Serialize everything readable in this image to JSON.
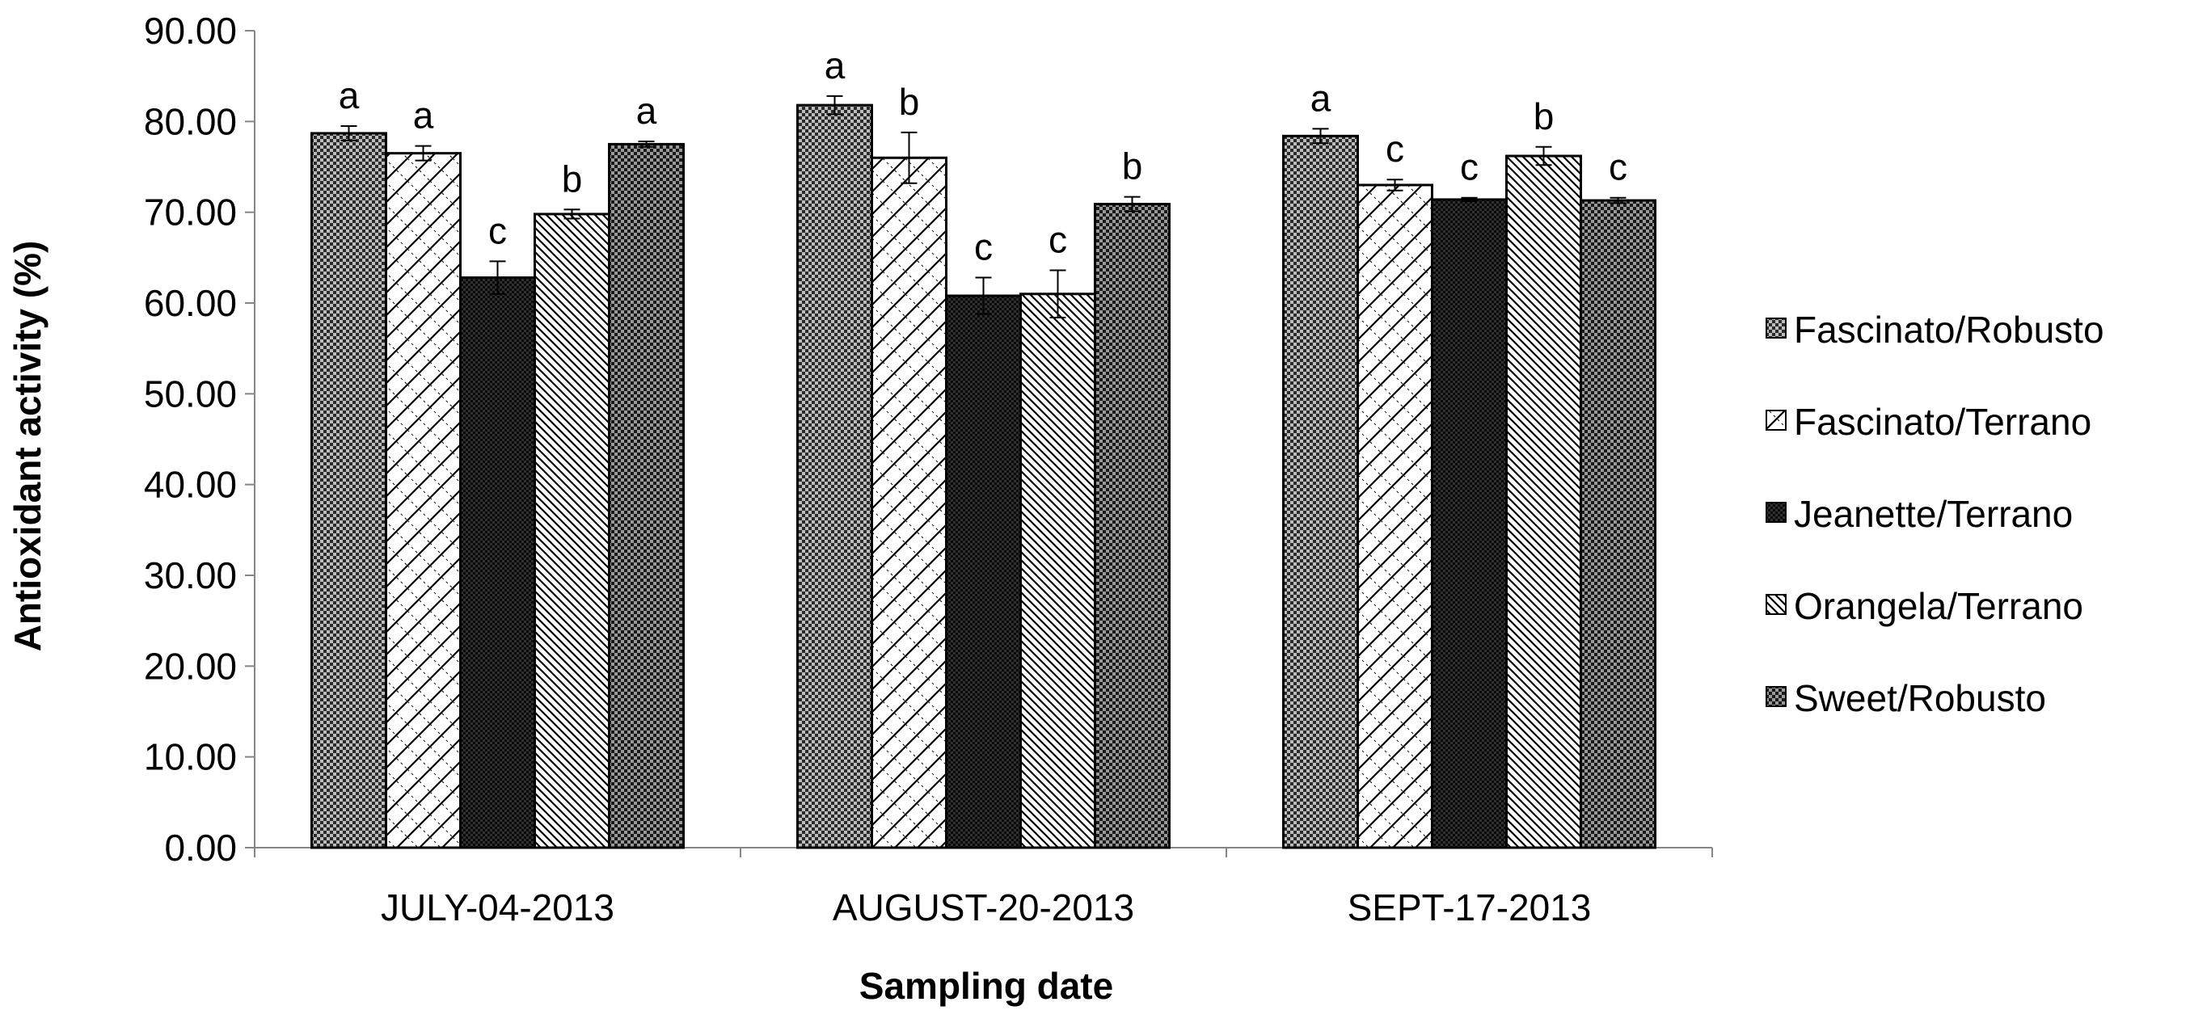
{
  "chart_data": {
    "type": "bar",
    "title": "",
    "xlabel": "Sampling date",
    "ylabel": "Antioxidant activity (%)",
    "ylim": [
      0,
      90
    ],
    "yticks": [
      0,
      10,
      20,
      30,
      40,
      50,
      60,
      70,
      80,
      90
    ],
    "ytick_labels": [
      "0.00",
      "10.00",
      "20.00",
      "30.00",
      "40.00",
      "50.00",
      "60.00",
      "70.00",
      "80.00",
      "90.00"
    ],
    "grid": false,
    "legend_position": "right",
    "categories": [
      "JULY-04-2013",
      "AUGUST-20-2013",
      "SEPT-17-2013"
    ],
    "series": [
      {
        "name": "Fascinato/Robusto",
        "pattern": "dense-checker",
        "values": [
          78.7,
          81.8,
          78.4
        ],
        "errors": [
          0.8,
          1.0,
          0.8
        ],
        "letters": [
          "a",
          "a",
          "a"
        ]
      },
      {
        "name": "Fascinato/Terrano",
        "pattern": "light-diagonal-lattice",
        "values": [
          76.5,
          76.0,
          73.0
        ],
        "errors": [
          0.8,
          2.8,
          0.6
        ],
        "letters": [
          "a",
          "b",
          "c"
        ]
      },
      {
        "name": "Jeanette/Terrano",
        "pattern": "dark-checker",
        "values": [
          62.8,
          60.8,
          71.4
        ],
        "errors": [
          1.8,
          2.0,
          0.2
        ],
        "letters": [
          "c",
          "c",
          "c"
        ]
      },
      {
        "name": "Orangela/Terrano",
        "pattern": "diagonal-hatch",
        "values": [
          69.8,
          61.0,
          76.2
        ],
        "errors": [
          0.5,
          2.6,
          1.0
        ],
        "letters": [
          "b",
          "c",
          "b"
        ]
      },
      {
        "name": "Sweet/Robusto",
        "pattern": "fine-checker",
        "values": [
          77.5,
          70.9,
          71.3
        ],
        "errors": [
          0.3,
          0.8,
          0.3
        ],
        "letters": [
          "a",
          "b",
          "c"
        ]
      }
    ]
  }
}
